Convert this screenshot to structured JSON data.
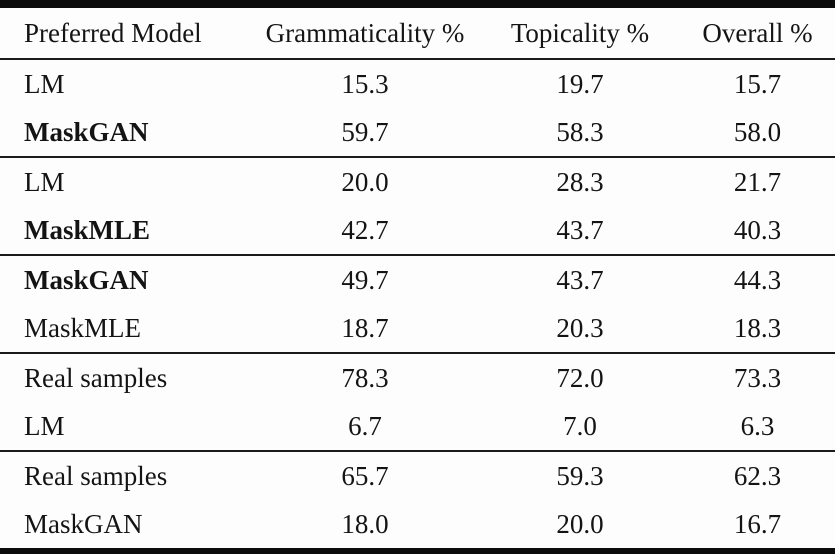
{
  "table": {
    "headers": {
      "model": "Preferred Model",
      "grammaticality": "Grammaticality %",
      "topicality": "Topicality %",
      "overall": "Overall %"
    },
    "groups": [
      {
        "rows": [
          {
            "model": "LM",
            "bold": false,
            "values": [
              "15.3",
              "19.7",
              "15.7"
            ]
          },
          {
            "model": "MaskGAN",
            "bold": true,
            "values": [
              "59.7",
              "58.3",
              "58.0"
            ]
          }
        ]
      },
      {
        "rows": [
          {
            "model": "LM",
            "bold": false,
            "values": [
              "20.0",
              "28.3",
              "21.7"
            ]
          },
          {
            "model": "MaskMLE",
            "bold": true,
            "values": [
              "42.7",
              "43.7",
              "40.3"
            ]
          }
        ]
      },
      {
        "rows": [
          {
            "model": "MaskGAN",
            "bold": true,
            "values": [
              "49.7",
              "43.7",
              "44.3"
            ]
          },
          {
            "model": "MaskMLE",
            "bold": false,
            "values": [
              "18.7",
              "20.3",
              "18.3"
            ]
          }
        ]
      },
      {
        "rows": [
          {
            "model": "Real samples",
            "bold": false,
            "values": [
              "78.3",
              "72.0",
              "73.3"
            ]
          },
          {
            "model": "LM",
            "bold": false,
            "values": [
              "6.7",
              "7.0",
              "6.3"
            ]
          }
        ]
      },
      {
        "rows": [
          {
            "model": "Real samples",
            "bold": false,
            "values": [
              "65.7",
              "59.3",
              "62.3"
            ]
          },
          {
            "model": "MaskGAN",
            "bold": false,
            "values": [
              "18.0",
              "20.0",
              "16.7"
            ]
          }
        ]
      }
    ]
  },
  "colors": {
    "rule_thick": "#0c0c0c",
    "rule_thin": "#1b1b1b",
    "text": "#141414",
    "background": "#fbfbfb"
  },
  "chart_data": {
    "type": "table",
    "columns": [
      "Preferred Model",
      "Grammaticality %",
      "Topicality %",
      "Overall %"
    ],
    "rows": [
      [
        "LM",
        15.3,
        19.7,
        15.7
      ],
      [
        "MaskGAN",
        59.7,
        58.3,
        58.0
      ],
      [
        "LM",
        20.0,
        28.3,
        21.7
      ],
      [
        "MaskMLE",
        42.7,
        43.7,
        40.3
      ],
      [
        "MaskGAN",
        49.7,
        43.7,
        44.3
      ],
      [
        "MaskMLE",
        18.7,
        20.3,
        18.3
      ],
      [
        "Real samples",
        78.3,
        72.0,
        73.3
      ],
      [
        "LM",
        6.7,
        7.0,
        6.3
      ],
      [
        "Real samples",
        65.7,
        59.3,
        62.3
      ],
      [
        "MaskGAN",
        18.0,
        20.0,
        16.7
      ]
    ]
  }
}
